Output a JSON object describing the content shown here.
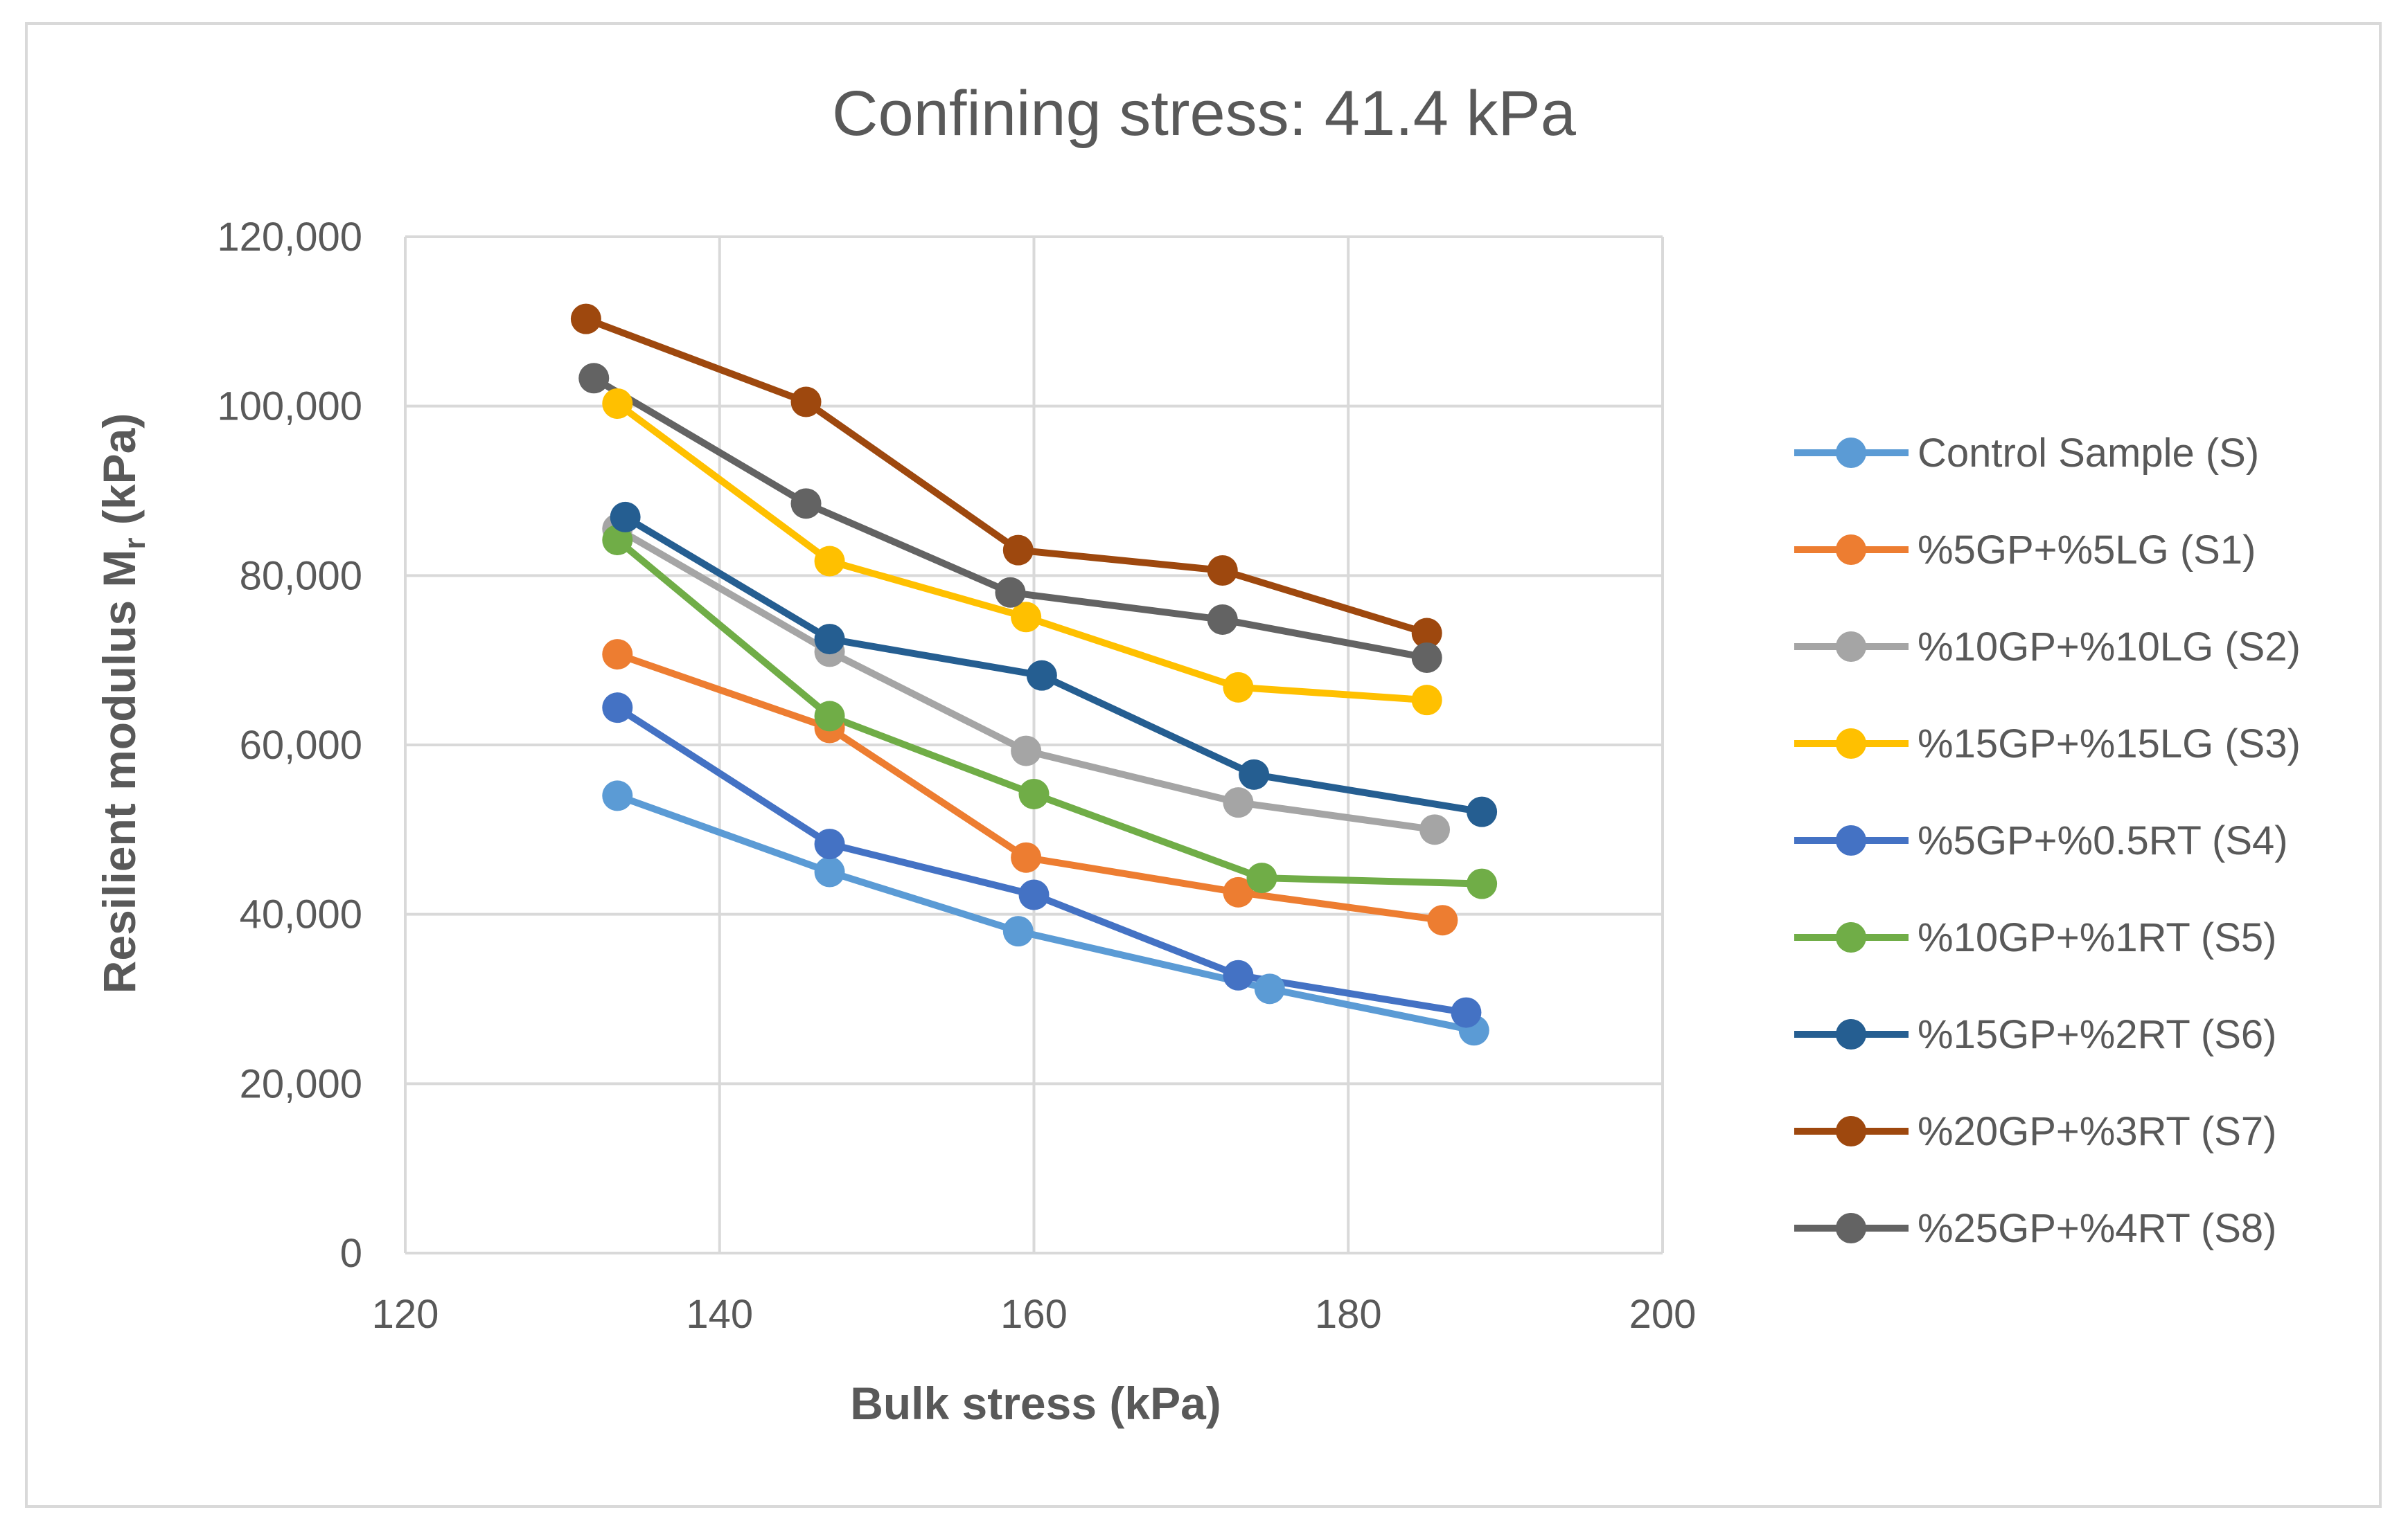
{
  "chart_data": {
    "type": "scatter",
    "title": "Confining stress: 41.4 kPa",
    "xlabel": "Bulk stress (kPa)",
    "ylabel_main": "Resilient modulus M",
    "ylabel_sub": "r",
    "ylabel_unit": " (kPa)",
    "xlim": [
      120,
      200
    ],
    "ylim": [
      0,
      120000
    ],
    "xticks": [
      120,
      140,
      160,
      180,
      200
    ],
    "yticks": [
      0,
      20000,
      40000,
      60000,
      80000,
      100000,
      120000
    ],
    "xtick_labels": [
      "120",
      "140",
      "160",
      "180",
      "200"
    ],
    "ytick_labels": [
      "0",
      "20,000",
      "40,000",
      "60,000",
      "80,000",
      "100,000",
      "120,000"
    ],
    "grid": true,
    "legend_position": "right",
    "series": [
      {
        "name": "Control Sample (S)",
        "color": "#5B9BD5",
        "points": [
          [
            133.5,
            54000
          ],
          [
            147,
            45000
          ],
          [
            159,
            38000
          ],
          [
            175,
            31200
          ],
          [
            188,
            26300
          ]
        ]
      },
      {
        "name": "%5GP+%5LG (S1)",
        "color": "#ED7D31",
        "points": [
          [
            133.5,
            70700
          ],
          [
            147,
            62000
          ],
          [
            159.5,
            46700
          ],
          [
            173,
            42600
          ],
          [
            186,
            39300
          ]
        ]
      },
      {
        "name": "%10GP+%10LG (S2)",
        "color": "#A5A5A5",
        "points": [
          [
            133.5,
            85500
          ],
          [
            147,
            71000
          ],
          [
            159.5,
            59300
          ],
          [
            173,
            53200
          ],
          [
            185.5,
            50000
          ]
        ]
      },
      {
        "name": "%15GP+%15LG (S3)",
        "color": "#FFC000",
        "points": [
          [
            133.5,
            100300
          ],
          [
            147,
            81700
          ],
          [
            159.5,
            75100
          ],
          [
            173,
            66800
          ],
          [
            185,
            65300
          ]
        ]
      },
      {
        "name": "%5GP+%0.5RT (S4)",
        "color": "#4472C4",
        "points": [
          [
            133.5,
            64400
          ],
          [
            147,
            48300
          ],
          [
            160,
            42300
          ],
          [
            173,
            32800
          ],
          [
            187.5,
            28400
          ]
        ]
      },
      {
        "name": "%10GP+%1RT (S5)",
        "color": "#70AD47",
        "points": [
          [
            133.5,
            84200
          ],
          [
            147,
            63400
          ],
          [
            160,
            54200
          ],
          [
            174.5,
            44300
          ],
          [
            188.5,
            43600
          ]
        ]
      },
      {
        "name": "%15GP+%2RT (S6)",
        "color": "#255E91",
        "points": [
          [
            134,
            86900
          ],
          [
            147,
            72500
          ],
          [
            160.5,
            68200
          ],
          [
            174,
            56500
          ],
          [
            188.5,
            52100
          ]
        ]
      },
      {
        "name": "%20GP+%3RT (S7)",
        "color": "#9E480E",
        "points": [
          [
            131.5,
            110300
          ],
          [
            145.5,
            100500
          ],
          [
            159,
            83000
          ],
          [
            172,
            80600
          ],
          [
            185,
            73200
          ]
        ]
      },
      {
        "name": "%25GP+%4RT (S8)",
        "color": "#636363",
        "points": [
          [
            132,
            103300
          ],
          [
            145.5,
            88500
          ],
          [
            158.5,
            78000
          ],
          [
            172,
            74800
          ],
          [
            185,
            70300
          ]
        ]
      }
    ]
  },
  "colors": {
    "grid": "#D9D9D9",
    "text": "#595959",
    "border": "#D9D9D9"
  }
}
